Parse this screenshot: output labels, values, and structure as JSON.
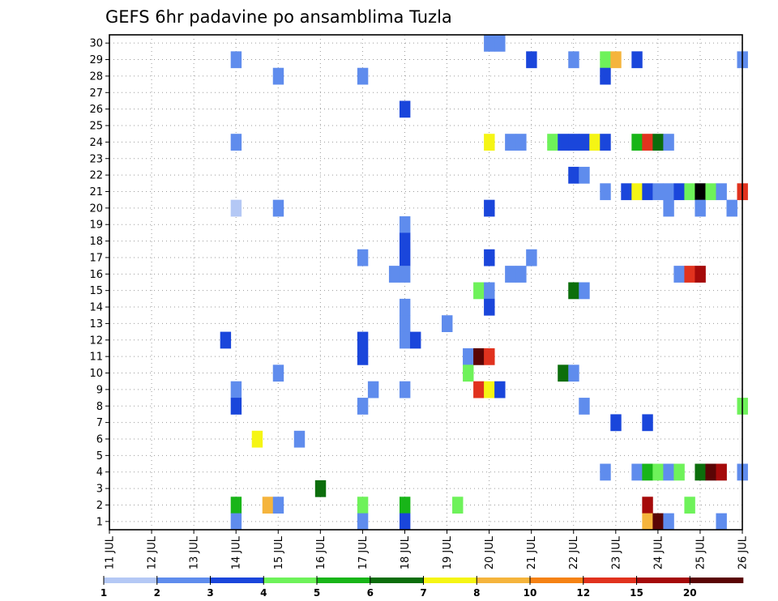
{
  "chart_data": {
    "type": "heatmap",
    "title": "GEFS 6hr padavine po ansamblima Tuzla",
    "xlabel": "",
    "ylabel": "",
    "x_ticks": [
      "11 JUL",
      "12 JUL",
      "13 JUL",
      "14 JUL",
      "15 JUL",
      "16 JUL",
      "17 JUL",
      "18 JUL",
      "19 JUL",
      "20 JUL",
      "21 JUL",
      "22 JUL",
      "23 JUL",
      "24 JUL",
      "25 JUL",
      "26 JUL"
    ],
    "y_ticks": [
      "1",
      "2",
      "3",
      "4",
      "5",
      "6",
      "7",
      "8",
      "9",
      "10",
      "11",
      "12",
      "13",
      "14",
      "15",
      "16",
      "17",
      "18",
      "19",
      "20",
      "21",
      "22",
      "23",
      "24",
      "25",
      "26",
      "27",
      "28",
      "29",
      "30"
    ],
    "xlim": [
      0,
      60
    ],
    "ylim": [
      0.5,
      30.5
    ],
    "x_unit": "6-hour steps from 11 JUL 00Z",
    "grid": true,
    "legend": {
      "placement": "bottom",
      "labels": [
        "1",
        "2",
        "3",
        "4",
        "5",
        "6",
        "7",
        "8",
        "10",
        "12",
        "15",
        "20"
      ],
      "colors": [
        "#b4c8f5",
        "#5f8ced",
        "#1a46db",
        "#6ef25a",
        "#18b518",
        "#0c6e0c",
        "#f5f514",
        "#f5b43c",
        "#f58214",
        "#e1321e",
        "#a50a0a",
        "#5a0505"
      ]
    },
    "cells": [
      [
        12,
        29,
        1
      ],
      [
        12,
        24,
        1
      ],
      [
        12,
        20,
        0
      ],
      [
        12,
        9,
        1
      ],
      [
        12,
        8,
        2
      ],
      [
        12,
        2,
        4
      ],
      [
        12,
        1,
        1
      ],
      [
        11,
        12,
        2
      ],
      [
        14,
        6,
        6
      ],
      [
        15,
        2,
        7
      ],
      [
        16,
        28,
        1
      ],
      [
        16,
        20,
        1
      ],
      [
        16,
        10,
        1
      ],
      [
        16,
        2,
        1
      ],
      [
        18,
        6,
        1
      ],
      [
        20,
        3,
        5
      ],
      [
        24,
        28,
        1
      ],
      [
        24,
        17,
        1
      ],
      [
        24,
        12,
        2
      ],
      [
        24,
        11,
        2
      ],
      [
        24,
        8,
        1
      ],
      [
        24,
        2,
        3
      ],
      [
        24,
        1,
        1
      ],
      [
        25,
        9,
        1
      ],
      [
        28,
        26,
        2
      ],
      [
        28,
        19,
        1
      ],
      [
        28,
        18,
        2
      ],
      [
        28,
        17,
        2
      ],
      [
        28,
        16,
        1
      ],
      [
        28,
        14,
        1
      ],
      [
        28,
        13,
        1
      ],
      [
        28,
        12,
        1
      ],
      [
        28,
        9,
        1
      ],
      [
        28,
        2,
        4
      ],
      [
        28,
        1,
        2
      ],
      [
        27,
        16,
        1
      ],
      [
        29,
        12,
        2
      ],
      [
        32,
        13,
        1
      ],
      [
        33,
        2,
        3
      ],
      [
        34,
        11,
        1
      ],
      [
        34,
        10,
        3
      ],
      [
        35,
        15,
        3
      ],
      [
        35,
        11,
        11
      ],
      [
        35,
        9,
        9
      ],
      [
        36,
        30,
        1
      ],
      [
        36,
        24,
        6
      ],
      [
        36,
        20,
        2
      ],
      [
        36,
        17,
        2
      ],
      [
        36,
        15,
        1
      ],
      [
        36,
        14,
        2
      ],
      [
        36,
        11,
        9
      ],
      [
        36,
        9,
        6
      ],
      [
        37,
        30,
        1
      ],
      [
        37,
        9,
        2
      ],
      [
        38,
        24,
        1
      ],
      [
        38,
        16,
        1
      ],
      [
        39,
        24,
        1
      ],
      [
        39,
        16,
        1
      ],
      [
        40,
        29,
        2
      ],
      [
        40,
        17,
        1
      ],
      [
        42,
        24,
        3
      ],
      [
        43,
        24,
        2
      ],
      [
        43,
        10,
        5
      ],
      [
        44,
        29,
        1
      ],
      [
        44,
        24,
        2
      ],
      [
        44,
        22,
        2
      ],
      [
        44,
        15,
        5
      ],
      [
        44,
        10,
        1
      ],
      [
        45,
        24,
        2
      ],
      [
        45,
        22,
        1
      ],
      [
        45,
        15,
        1
      ],
      [
        45,
        8,
        1
      ],
      [
        46,
        24,
        6
      ],
      [
        47,
        29,
        3
      ],
      [
        47,
        28,
        2
      ],
      [
        47,
        24,
        2
      ],
      [
        47,
        21,
        1
      ],
      [
        47,
        4,
        1
      ],
      [
        48,
        29,
        7
      ],
      [
        48,
        7,
        2
      ],
      [
        49,
        21,
        2
      ],
      [
        50,
        29,
        2
      ],
      [
        50,
        24,
        4
      ],
      [
        50,
        21,
        6
      ],
      [
        50,
        4,
        1
      ],
      [
        51,
        24,
        9
      ],
      [
        51,
        21,
        2
      ],
      [
        51,
        7,
        2
      ],
      [
        51,
        4,
        4
      ],
      [
        51,
        2,
        10
      ],
      [
        51,
        1,
        7
      ],
      [
        52,
        24,
        5
      ],
      [
        52,
        21,
        1
      ],
      [
        52,
        4,
        3
      ],
      [
        52,
        1,
        11
      ],
      [
        53,
        24,
        1
      ],
      [
        53,
        21,
        1
      ],
      [
        53,
        20,
        1
      ],
      [
        53,
        4,
        1
      ],
      [
        53,
        1,
        1
      ],
      [
        54,
        21,
        2
      ],
      [
        54,
        16,
        1
      ],
      [
        54,
        4,
        3
      ],
      [
        55,
        21,
        3
      ],
      [
        55,
        16,
        9
      ],
      [
        55,
        2,
        3
      ],
      [
        56,
        21,
        12
      ],
      [
        56,
        20,
        1
      ],
      [
        56,
        16,
        10
      ],
      [
        56,
        4,
        5
      ],
      [
        57,
        21,
        3
      ],
      [
        57,
        4,
        11
      ],
      [
        58,
        21,
        1
      ],
      [
        58,
        4,
        10
      ],
      [
        58,
        1,
        1
      ],
      [
        59,
        20,
        1
      ],
      [
        60,
        29,
        1
      ],
      [
        60,
        21,
        9
      ],
      [
        60,
        8,
        3
      ],
      [
        60,
        4,
        1
      ]
    ]
  }
}
